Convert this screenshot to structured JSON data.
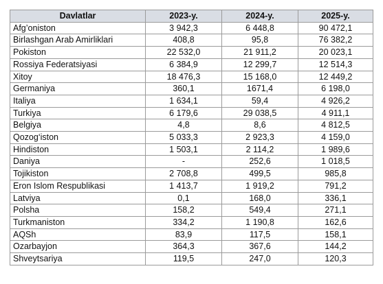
{
  "table": {
    "headers": [
      "Davlatlar",
      "2023-y.",
      "2024-y.",
      "2025-y."
    ],
    "rows": [
      [
        "Afg’oniston",
        "3 942,3",
        "6 448,8",
        "90 472,1"
      ],
      [
        "Birlashgan Arab Amirliklari",
        "408,8",
        "95,8",
        "76 382,2"
      ],
      [
        "Pokiston",
        "22 532,0",
        "21 911,2",
        "20 023,1"
      ],
      [
        "Rossiya Federatsiyasi",
        "6 384,9",
        "12 299,7",
        "12 514,3"
      ],
      [
        "Xitoy",
        "18 476,3",
        "15 168,0",
        "12 449,2"
      ],
      [
        "Germaniya",
        "360,1",
        "1671,4",
        "6 198,0"
      ],
      [
        "Italiya",
        "1 634,1",
        "59,4",
        "4 926,2"
      ],
      [
        "Turkiya",
        "6 179,6",
        "29 038,5",
        "4 911,1"
      ],
      [
        "Belgiya",
        "4,8",
        "8,6",
        "4 812,5"
      ],
      [
        "Qozog‘iston",
        "5 033,3",
        "2 923,3",
        "4 159,0"
      ],
      [
        "Hindiston",
        "1 503,1",
        "2 114,2",
        "1 989,6"
      ],
      [
        "Daniya",
        "-",
        "252,6",
        "1 018,5"
      ],
      [
        "Tojikiston",
        "2 708,8",
        "499,5",
        "985,8"
      ],
      [
        "Eron Islom Respublikasi",
        "1 413,7",
        "1 919,2",
        "791,2"
      ],
      [
        "Latviya",
        "0,1",
        "168,0",
        "336,1"
      ],
      [
        "Polsha",
        "158,2",
        "549,4",
        "271,1"
      ],
      [
        "Turkmaniston",
        "334,2",
        "1 190,8",
        "162,6"
      ],
      [
        "AQSh",
        "83,9",
        "117,5",
        "158,1"
      ],
      [
        "Ozarbayjon",
        "364,3",
        "367,6",
        "144,2"
      ],
      [
        "Shveytsariya",
        "119,5",
        "247,0",
        "120,3"
      ]
    ]
  },
  "colors": {
    "header_bg": "#d9dde4",
    "border": "#9a9a9a",
    "text": "#111111"
  }
}
